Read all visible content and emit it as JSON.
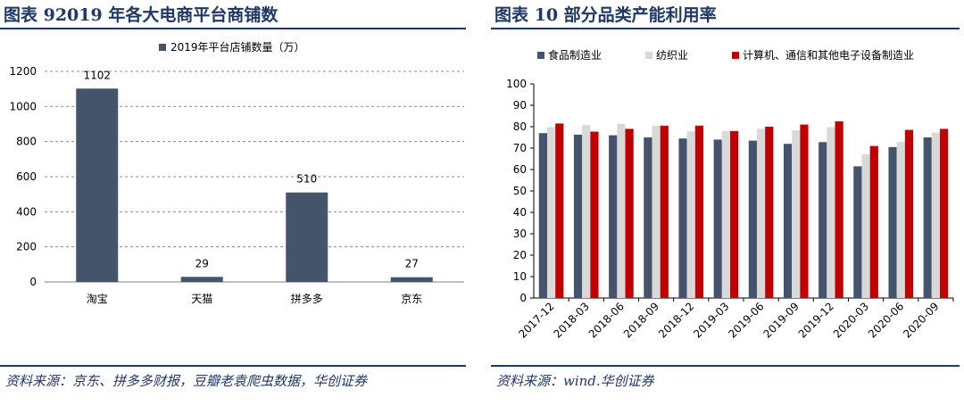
{
  "left": {
    "title": "图表 92019 年各大电商平台商铺数",
    "source": "资料来源：京东、拼多多财报，豆瓣老袁爬虫数据，华创证券"
  },
  "right": {
    "title": "图表 10 部分品类产能利用率",
    "source": "资料来源：wind.华创证券"
  },
  "chart_data": [
    {
      "type": "bar",
      "categories": [
        "淘宝",
        "天猫",
        "拼多多",
        "京东"
      ],
      "series": [
        {
          "name": "2019年平台店铺数量（万）",
          "values": [
            1102,
            29,
            510,
            27
          ],
          "color": "#44546a"
        }
      ],
      "data_labels": [
        "1102",
        "29",
        "510",
        "27"
      ],
      "ylim": [
        0,
        1200
      ],
      "yticks": [
        0,
        200,
        400,
        600,
        800,
        1000,
        1200
      ],
      "grid": true,
      "legend": "top"
    },
    {
      "type": "bar",
      "categories": [
        "2017-12",
        "2018-03",
        "2018-06",
        "2018-09",
        "2018-12",
        "2019-03",
        "2019-06",
        "2019-09",
        "2019-12",
        "2020-03",
        "2020-06",
        "2020-09"
      ],
      "series": [
        {
          "name": "食品制造业",
          "color": "#44546a",
          "values": [
            77,
            76.3,
            76,
            75,
            74.5,
            74,
            73.5,
            72,
            72.8,
            61.5,
            70.5,
            75
          ]
        },
        {
          "name": "纺织业",
          "color": "#d9d9d9",
          "values": [
            79.8,
            80.8,
            81.3,
            80.5,
            77.8,
            78,
            79,
            78.3,
            79.8,
            67.2,
            72.9,
            77.3
          ]
        },
        {
          "name": "计算机、通信和其他电子设备制造业",
          "color": "#c00000",
          "values": [
            81.5,
            77.7,
            79,
            80.5,
            80.5,
            78,
            80,
            81,
            82.5,
            71,
            78.5,
            79
          ]
        }
      ],
      "ylim": [
        0,
        100
      ],
      "yticks": [
        0,
        10,
        20,
        30,
        40,
        50,
        60,
        70,
        80,
        90,
        100
      ],
      "grid": false,
      "legend": "top"
    }
  ]
}
